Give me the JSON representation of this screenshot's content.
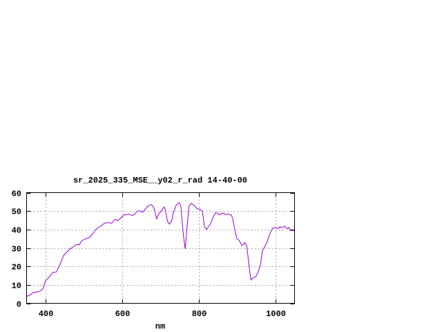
{
  "chart_data": {
    "type": "line",
    "title": "sr_2025_335_MSE__y02_r_rad 14-40-00",
    "xlabel": "nm",
    "ylabel": "",
    "xlim": [
      350,
      1050
    ],
    "ylim": [
      0,
      60
    ],
    "xticks": [
      400,
      600,
      800,
      1000
    ],
    "yticks": [
      0,
      10,
      20,
      30,
      40,
      50,
      60
    ],
    "grid": true,
    "line_color": "#9400d3",
    "series": [
      {
        "x": [
          350,
          358,
          367,
          376,
          385,
          393,
          399,
          410,
          419,
          428,
          438,
          446,
          455,
          464,
          473,
          481,
          488,
          494,
          506,
          515,
          521,
          533,
          545,
          554,
          566,
          572,
          581,
          588,
          594,
          605,
          617,
          626,
          632,
          640,
          647,
          653,
          659,
          668,
          676,
          682,
          690,
          694,
          702,
          709,
          712,
          718,
          723,
          729,
          733,
          741,
          749,
          753,
          759,
          764,
          768,
          774,
          780,
          787,
          795,
          804,
          809,
          815,
          820,
          825,
          831,
          837,
          843,
          849,
          853,
          861,
          869,
          876,
          884,
          888,
          893,
          899,
          906,
          912,
          917,
          920,
          925,
          931,
          936,
          942,
          949,
          955,
          961,
          966,
          972,
          978,
          985,
          993,
          1001,
          1008,
          1011,
          1019,
          1024,
          1031,
          1035,
          1039,
          1050
        ],
        "y": [
          3.75,
          4.4,
          5.75,
          6.1,
          6.5,
          8,
          12,
          14.5,
          16.8,
          17,
          21.4,
          25.7,
          27.9,
          29.5,
          30.8,
          32,
          31.8,
          33.9,
          35.1,
          35.8,
          37.3,
          40.5,
          42,
          43.5,
          43.8,
          43.4,
          45.5,
          44.8,
          45.8,
          48,
          48.3,
          47.6,
          48.3,
          50,
          50.1,
          49.3,
          50.8,
          52.9,
          53.5,
          52,
          45.8,
          48,
          50.1,
          52.3,
          50.8,
          44.5,
          42.9,
          44.5,
          48.9,
          53.3,
          54.5,
          52.6,
          38.3,
          29.5,
          38.3,
          52.6,
          54.1,
          53.3,
          51.4,
          50.8,
          50.1,
          41.4,
          40.1,
          41.4,
          43.3,
          46.4,
          49.1,
          48.9,
          47.9,
          48.9,
          48.3,
          48.3,
          48,
          46.4,
          40.8,
          35.1,
          33.9,
          31.4,
          31.8,
          33,
          31.4,
          20.8,
          12.6,
          13.9,
          14.5,
          17,
          20.8,
          28.3,
          30.8,
          33,
          37.6,
          40.8,
          41,
          40.5,
          41.4,
          41.1,
          41.8,
          40.4,
          41.1,
          39.5,
          39.5
        ]
      }
    ]
  }
}
